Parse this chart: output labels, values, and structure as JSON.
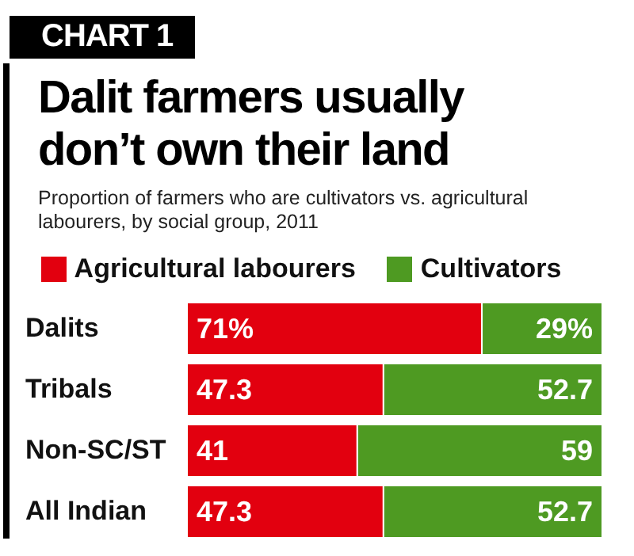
{
  "chart_data": {
    "type": "bar",
    "orientation": "horizontal",
    "stacked": true,
    "title": "Dalit farmers usually don’t own their land",
    "subtitle": "Proportion of farmers who are cultivators vs. agricultural labourers, by social group, 2011",
    "annotations": [
      "CHART 1"
    ],
    "categories": [
      "Dalits",
      "Tribals",
      "Non-SC/ST",
      "All Indian"
    ],
    "series": [
      {
        "name": "Agricultural labourers",
        "color": "#e2000f",
        "values": [
          71,
          47.3,
          41,
          47.3
        ],
        "value_labels": [
          "71%",
          "47.3",
          "41",
          "47.3"
        ]
      },
      {
        "name": "Cultivators",
        "color": "#4e9a22",
        "values": [
          29,
          52.7,
          59,
          52.7
        ],
        "value_labels": [
          "29%",
          "52.7",
          "59",
          "52.7"
        ]
      }
    ],
    "xlim": [
      0,
      100
    ],
    "tick_labels": "y",
    "legend": "top"
  }
}
